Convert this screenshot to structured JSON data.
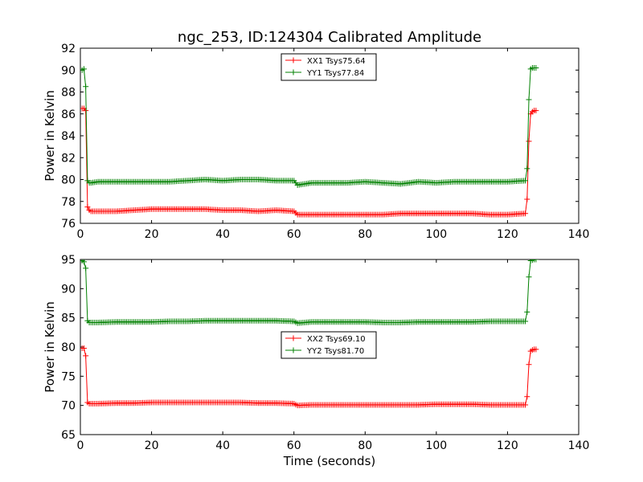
{
  "title": "ngc_253, ID:124304 Calibrated Amplitude",
  "colors": {
    "red": "#ff0000",
    "green": "#008000",
    "axes": "#000000"
  },
  "chart_data": [
    {
      "type": "line",
      "xlabel": "",
      "ylabel": "Power in Kelvin",
      "xlim": [
        0,
        140
      ],
      "ylim": [
        76,
        92
      ],
      "xticks": [
        0,
        20,
        40,
        60,
        80,
        100,
        120,
        140
      ],
      "yticks": [
        76,
        78,
        80,
        82,
        84,
        86,
        88,
        90,
        92
      ],
      "grid": false,
      "legend_position": "top-center",
      "series": [
        {
          "name": "XX1 Tsys75.64",
          "color": "#ff0000",
          "x": [
            0.5,
            1.0,
            1.5,
            2.0,
            2.5,
            3,
            5,
            10,
            15,
            20,
            25,
            30,
            35,
            40,
            45,
            50,
            55,
            60,
            61,
            65,
            70,
            75,
            80,
            85,
            90,
            95,
            100,
            105,
            110,
            115,
            120,
            125,
            125.5,
            126,
            126.5,
            127,
            127.5,
            128
          ],
          "y": [
            86.5,
            86.5,
            86.3,
            77.5,
            77.2,
            77.1,
            77.1,
            77.1,
            77.2,
            77.3,
            77.3,
            77.3,
            77.3,
            77.2,
            77.2,
            77.1,
            77.2,
            77.1,
            76.8,
            76.8,
            76.8,
            76.8,
            76.8,
            76.8,
            76.9,
            76.9,
            76.9,
            76.9,
            76.9,
            76.8,
            76.8,
            76.9,
            78.2,
            83.5,
            86.0,
            86.2,
            86.3,
            86.3
          ]
        },
        {
          "name": "YY1 Tsys77.84",
          "color": "#008000",
          "x": [
            0.5,
            1.0,
            1.5,
            2.0,
            2.5,
            3,
            5,
            10,
            15,
            20,
            25,
            30,
            35,
            40,
            45,
            50,
            55,
            60,
            61,
            65,
            70,
            75,
            80,
            85,
            90,
            95,
            100,
            105,
            110,
            115,
            120,
            125,
            125.5,
            126,
            126.5,
            127,
            127.5,
            128
          ],
          "y": [
            90.0,
            90.1,
            88.5,
            79.9,
            79.7,
            79.7,
            79.8,
            79.8,
            79.8,
            79.8,
            79.8,
            79.9,
            80.0,
            79.9,
            80.0,
            80.0,
            79.9,
            79.9,
            79.5,
            79.7,
            79.7,
            79.7,
            79.8,
            79.7,
            79.6,
            79.8,
            79.7,
            79.8,
            79.8,
            79.8,
            79.8,
            79.9,
            81.0,
            87.3,
            90.1,
            90.2,
            90.2,
            90.2
          ]
        }
      ]
    },
    {
      "type": "line",
      "xlabel": "Time (seconds)",
      "ylabel": "Power in Kelvin",
      "xlim": [
        0,
        140
      ],
      "ylim": [
        65,
        95
      ],
      "xticks": [
        0,
        20,
        40,
        60,
        80,
        100,
        120,
        140
      ],
      "yticks": [
        65,
        70,
        75,
        80,
        85,
        90,
        95
      ],
      "grid": false,
      "legend_position": "center",
      "series": [
        {
          "name": "XX2 Tsys69.10",
          "color": "#ff0000",
          "x": [
            0.5,
            1.0,
            1.5,
            2.0,
            2.5,
            3,
            5,
            10,
            15,
            20,
            25,
            30,
            35,
            40,
            45,
            50,
            55,
            60,
            61,
            65,
            70,
            75,
            80,
            85,
            90,
            95,
            100,
            105,
            110,
            115,
            120,
            125,
            125.5,
            126,
            126.5,
            127,
            127.5,
            128
          ],
          "y": [
            79.8,
            79.8,
            78.5,
            70.5,
            70.3,
            70.3,
            70.3,
            70.4,
            70.4,
            70.5,
            70.5,
            70.5,
            70.5,
            70.5,
            70.5,
            70.4,
            70.4,
            70.3,
            70.0,
            70.1,
            70.1,
            70.1,
            70.1,
            70.1,
            70.1,
            70.1,
            70.2,
            70.2,
            70.2,
            70.1,
            70.1,
            70.1,
            71.5,
            77.0,
            79.3,
            79.5,
            79.6,
            79.6
          ]
        },
        {
          "name": "YY2 Tsys81.70",
          "color": "#008000",
          "x": [
            0.5,
            1.0,
            1.5,
            2.0,
            2.5,
            3,
            5,
            10,
            15,
            20,
            25,
            30,
            35,
            40,
            45,
            50,
            55,
            60,
            61,
            65,
            70,
            75,
            80,
            85,
            90,
            95,
            100,
            105,
            110,
            115,
            120,
            125,
            125.5,
            126,
            126.5,
            127,
            127.5,
            128
          ],
          "y": [
            94.8,
            94.6,
            93.5,
            84.5,
            84.2,
            84.2,
            84.2,
            84.3,
            84.3,
            84.3,
            84.4,
            84.4,
            84.5,
            84.5,
            84.5,
            84.5,
            84.5,
            84.4,
            84.1,
            84.3,
            84.3,
            84.3,
            84.3,
            84.2,
            84.2,
            84.3,
            84.3,
            84.3,
            84.3,
            84.4,
            84.4,
            84.4,
            86.0,
            92.0,
            94.8,
            94.9,
            95.0,
            95.0
          ]
        }
      ]
    }
  ]
}
